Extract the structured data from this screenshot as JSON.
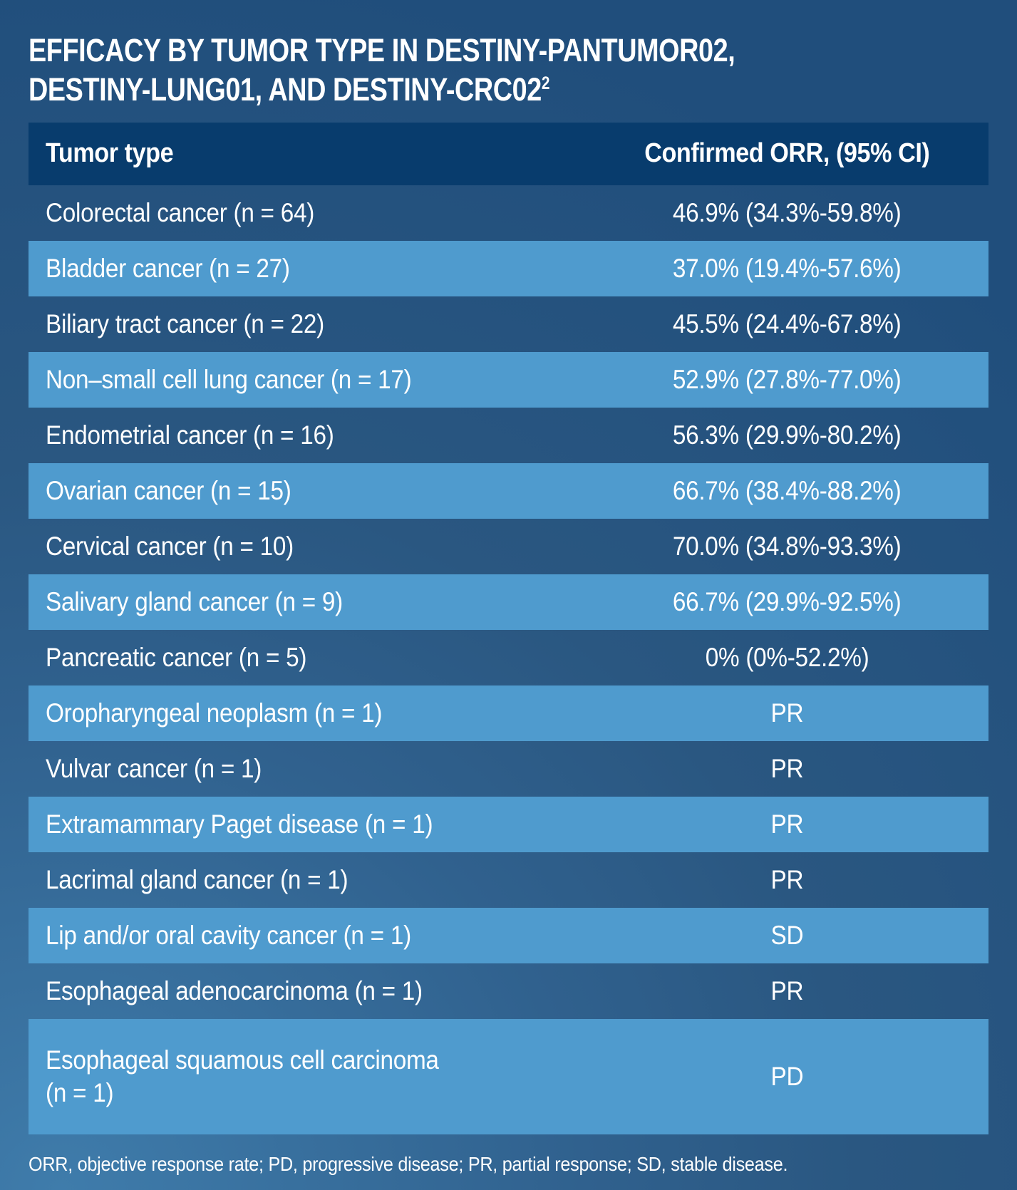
{
  "title": {
    "line1": "EFFICACY BY TUMOR TYPE IN DESTINY-PANTUMOR02,",
    "line2": "DESTINY-LUNG01, AND DESTINY-CRC02",
    "line2_superscript": "2"
  },
  "chart_data": {
    "type": "table",
    "title": "EFFICACY BY TUMOR TYPE IN DESTINY-PANTUMOR02, DESTINY-LUNG01, AND DESTINY-CRC02",
    "columns": [
      "Tumor type",
      "Confirmed ORR, (95% CI)"
    ],
    "rows": [
      {
        "tumor_type": "Colorectal cancer (n = 64)",
        "orr": "46.9% (34.3%-59.8%)",
        "highlighted": false
      },
      {
        "tumor_type": "Bladder cancer (n = 27)",
        "orr": "37.0% (19.4%-57.6%)",
        "highlighted": true
      },
      {
        "tumor_type": "Biliary tract cancer (n = 22)",
        "orr": "45.5% (24.4%-67.8%)",
        "highlighted": false
      },
      {
        "tumor_type": "Non–small cell lung cancer (n = 17)",
        "orr": "52.9% (27.8%-77.0%)",
        "highlighted": true
      },
      {
        "tumor_type": "Endometrial cancer (n = 16)",
        "orr": "56.3% (29.9%-80.2%)",
        "highlighted": false
      },
      {
        "tumor_type": "Ovarian cancer (n = 15)",
        "orr": "66.7% (38.4%-88.2%)",
        "highlighted": true
      },
      {
        "tumor_type": "Cervical cancer (n = 10)",
        "orr": "70.0% (34.8%-93.3%)",
        "highlighted": false
      },
      {
        "tumor_type": "Salivary gland cancer (n = 9)",
        "orr": "66.7% (29.9%-92.5%)",
        "highlighted": true
      },
      {
        "tumor_type": "Pancreatic cancer (n = 5)",
        "orr": "0% (0%-52.2%)",
        "highlighted": false
      },
      {
        "tumor_type": "Oropharyngeal neoplasm (n = 1)",
        "orr": "PR",
        "highlighted": true
      },
      {
        "tumor_type": "Vulvar cancer (n = 1)",
        "orr": "PR",
        "highlighted": false
      },
      {
        "tumor_type": "Extramammary Paget disease (n = 1)",
        "orr": "PR",
        "highlighted": true
      },
      {
        "tumor_type": "Lacrimal gland cancer (n = 1)",
        "orr": "PR",
        "highlighted": false
      },
      {
        "tumor_type": "Lip and/or oral cavity cancer (n = 1)",
        "orr": "SD",
        "highlighted": true
      },
      {
        "tumor_type": "Esophageal adenocarcinoma (n = 1)",
        "orr": "PR",
        "highlighted": false
      },
      {
        "tumor_type": "Esophageal squamous cell carcinoma\n(n = 1)",
        "orr": "PD",
        "highlighted": true
      }
    ]
  },
  "footnote": "ORR, objective response rate; PD, progressive disease; PR, partial response; SD, stable disease.",
  "colors": {
    "header_bg": "#083c6d",
    "row_highlight": "#4f9bce",
    "background_light": "#3f7cab",
    "background_dark": "#204e7c",
    "text": "#ffffff"
  }
}
